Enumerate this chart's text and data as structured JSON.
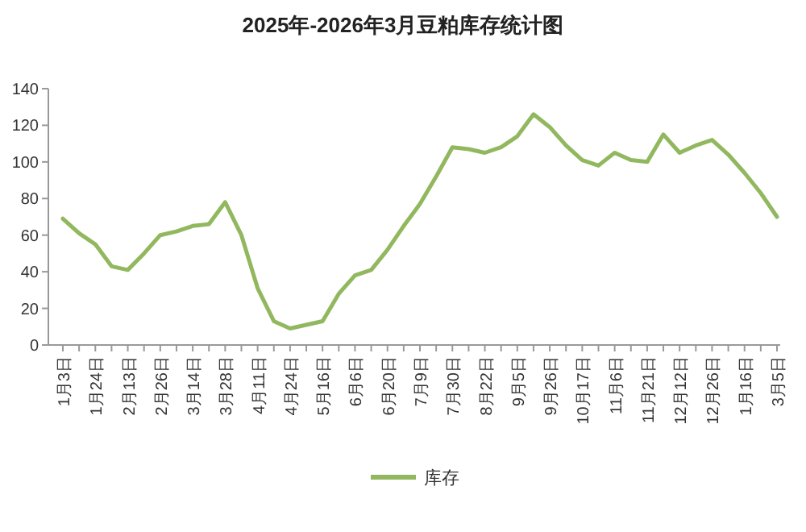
{
  "chart_data": {
    "type": "line",
    "title": "2025年-2026年3月豆粕库存统计图",
    "categories": [
      "1月3日",
      null,
      "1月24日",
      null,
      "2月13日",
      null,
      "2月26日",
      null,
      "3月14日",
      null,
      "3月28日",
      null,
      "4月11日",
      null,
      "4月24日",
      null,
      "5月16日",
      null,
      "6月6日",
      null,
      "6月20日",
      null,
      "7月9日",
      null,
      "7月30日",
      null,
      "8月22日",
      null,
      "9月5日",
      null,
      "9月26日",
      null,
      "10月17日",
      null,
      "11月6日",
      null,
      "11月21日",
      null,
      "12月12日",
      null,
      "12月26日",
      null,
      "1月16日",
      null,
      "3月5日"
    ],
    "series": [
      {
        "name": "库存",
        "color": "#92b85f",
        "values": [
          69,
          61,
          55,
          43,
          41,
          50,
          60,
          62,
          65,
          66,
          78,
          60,
          31,
          13,
          9,
          11,
          13,
          28,
          38,
          41,
          52,
          65,
          77,
          92,
          108,
          107,
          105,
          108,
          114,
          126,
          119,
          109,
          101,
          98,
          105,
          101,
          100,
          115,
          105,
          109,
          112,
          104,
          94,
          83,
          70
        ]
      }
    ],
    "ylim": [
      0,
      140
    ],
    "yticks": [
      0,
      20,
      40,
      60,
      80,
      100,
      120,
      140
    ],
    "grid": false,
    "legend": "bottom",
    "marker": "none",
    "line_style": "solid"
  }
}
